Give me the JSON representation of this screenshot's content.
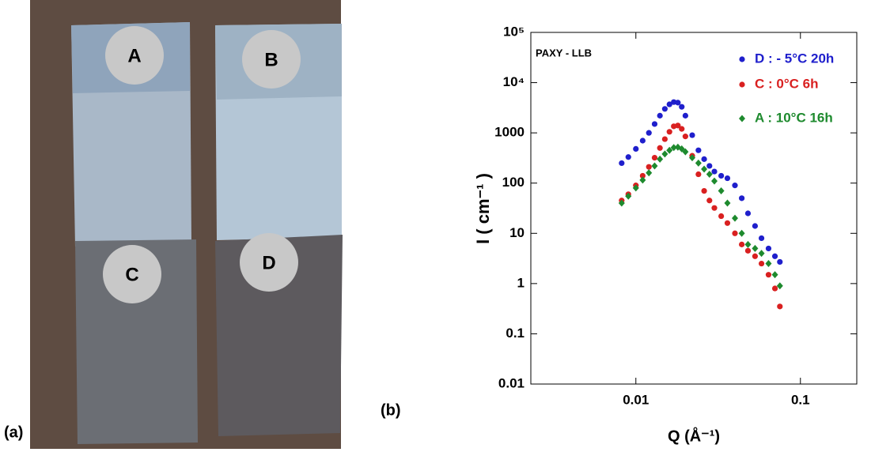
{
  "panel_labels": [
    "(a)",
    "(b)"
  ],
  "photo": {
    "labels": [
      "A",
      "B",
      "C",
      "D"
    ]
  },
  "chart_data": {
    "type": "scatter",
    "annotation": "PAXY - LLB",
    "x_label": "Q (Å⁻¹)",
    "y_label": "I ( cm⁻¹ )",
    "log_x": true,
    "log_y": true,
    "legend": "upper right",
    "xlim": [
      0.0023,
      0.22
    ],
    "ylim": [
      0.01,
      100000
    ],
    "xticks": [
      0.01,
      0.1
    ],
    "yticks": [
      0.01,
      0.1,
      1,
      10,
      100,
      1000,
      {
        "value": 10000,
        "label": "10⁴"
      },
      {
        "value": 100000,
        "label": "10⁵"
      }
    ],
    "x": [
      0.0082,
      0.009,
      0.01,
      0.011,
      0.012,
      0.013,
      0.014,
      0.015,
      0.016,
      0.017,
      0.018,
      0.019,
      0.02,
      0.022,
      0.024,
      0.026,
      0.028,
      0.03,
      0.033,
      0.036,
      0.04,
      0.044,
      0.048,
      0.053,
      0.058,
      0.064,
      0.07,
      0.075
    ],
    "series": [
      {
        "name": "D : - 5°C 20h",
        "color": "#1f1fcc",
        "marker": "circle",
        "values": [
          250,
          330,
          480,
          700,
          1000,
          1500,
          2200,
          3000,
          3700,
          4100,
          4000,
          3300,
          2200,
          900,
          450,
          300,
          220,
          170,
          140,
          125,
          90,
          50,
          25,
          14,
          8,
          5,
          3.5,
          2.7
        ]
      },
      {
        "name": "C : 0°C 6h",
        "color": "#d92020",
        "marker": "circle",
        "values": [
          45,
          60,
          90,
          140,
          210,
          320,
          500,
          750,
          1050,
          1350,
          1400,
          1200,
          850,
          350,
          150,
          70,
          45,
          32,
          22,
          16,
          10,
          6,
          4.5,
          3.5,
          2.5,
          1.5,
          0.8,
          0.35
        ]
      },
      {
        "name": "A : 10°C 16h",
        "color": "#1e8a2e",
        "marker": "diamond",
        "values": [
          40,
          55,
          80,
          115,
          160,
          220,
          300,
          380,
          450,
          510,
          520,
          480,
          420,
          320,
          250,
          190,
          150,
          110,
          70,
          40,
          20,
          10,
          6,
          5,
          4,
          2.5,
          1.5,
          0.9
        ]
      }
    ]
  }
}
